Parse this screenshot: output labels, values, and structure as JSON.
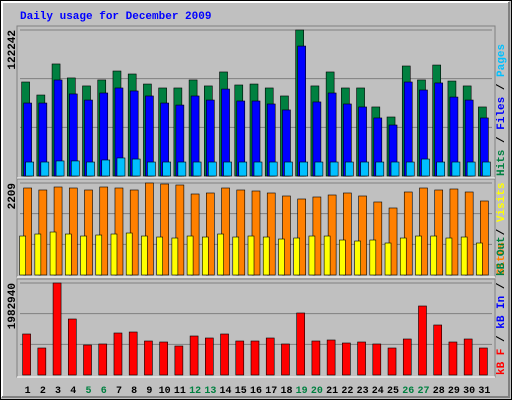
{
  "title": "Daily usage for December 2009",
  "chart_data": [
    {
      "type": "bar",
      "ylim": [
        0,
        122242
      ],
      "yticks": [
        122242
      ],
      "series": [
        {
          "name": "Hits",
          "color": "#008040",
          "values": [
            78700,
            67800,
            93800,
            82100,
            75400,
            80400,
            87900,
            85400,
            77000,
            73700,
            73700,
            80400,
            75400,
            87100,
            76200,
            77000,
            73700,
            67000,
            122242,
            75400,
            87100,
            73700,
            73700,
            57800,
            49400,
            92100,
            80400,
            92900,
            79500,
            75400,
            57800
          ]
        },
        {
          "name": "Files",
          "color": "#0000ff",
          "values": [
            61100,
            61100,
            80400,
            68700,
            63600,
            69500,
            73700,
            71200,
            67000,
            61100,
            59400,
            67000,
            63600,
            72800,
            62800,
            62800,
            60300,
            55300,
            108800,
            62000,
            69500,
            60300,
            57800,
            48600,
            42700,
            78700,
            72000,
            77900,
            66100,
            63600,
            48600
          ]
        },
        {
          "name": "Pages",
          "color": "#00c0ff",
          "values": [
            11700,
            11700,
            12600,
            12600,
            11700,
            13400,
            15100,
            14200,
            11700,
            11700,
            11700,
            11700,
            11700,
            11700,
            11700,
            11700,
            11700,
            11700,
            11700,
            11700,
            11700,
            11700,
            11700,
            11700,
            11700,
            11700,
            14200,
            11700,
            11700,
            11700,
            11700
          ]
        }
      ]
    },
    {
      "type": "bar",
      "ylim": [
        0,
        2209
      ],
      "yticks": [
        2209
      ],
      "series": [
        {
          "name": "Sites",
          "color": "#ff8000",
          "values": [
            2089,
            2041,
            2113,
            2089,
            2041,
            2113,
            2089,
            2041,
            2209,
            2185,
            2161,
            1945,
            1969,
            2089,
            2041,
            2017,
            1969,
            1897,
            1825,
            1873,
            1921,
            1969,
            1897,
            1753,
            1609,
            1993,
            2089,
            2041,
            2065,
            1993,
            1777
          ]
        },
        {
          "name": "Visits",
          "color": "#ffff00",
          "values": [
            936,
            984,
            1032,
            984,
            936,
            960,
            984,
            1008,
            936,
            912,
            888,
            936,
            912,
            984,
            912,
            936,
            912,
            864,
            888,
            936,
            936,
            840,
            816,
            840,
            768,
            888,
            936,
            936,
            888,
            912,
            768
          ]
        }
      ]
    },
    {
      "type": "bar",
      "ylim": [
        0,
        1982940
      ],
      "yticks": [
        1982940
      ],
      "categories": [
        "1",
        "2",
        "3",
        "4",
        "5",
        "6",
        "7",
        "8",
        "9",
        "10",
        "11",
        "12",
        "13",
        "14",
        "15",
        "16",
        "17",
        "18",
        "19",
        "20",
        "21",
        "22",
        "23",
        "24",
        "25",
        "26",
        "27",
        "28",
        "29",
        "30",
        "31"
      ],
      "category_colors": [
        "#000000",
        "#000000",
        "#000000",
        "#000000",
        "#008040",
        "#008040",
        "#000000",
        "#000000",
        "#000000",
        "#000000",
        "#000000",
        "#008040",
        "#008040",
        "#000000",
        "#000000",
        "#000000",
        "#000000",
        "#000000",
        "#008040",
        "#008040",
        "#000000",
        "#000000",
        "#000000",
        "#000000",
        "#000000",
        "#008040",
        "#008040",
        "#000000",
        "#000000",
        "#000000",
        "#000000"
      ],
      "series": [
        {
          "name": "kB F",
          "color": "#ff0000",
          "values": [
            883700,
            582000,
            1982940,
            1207000,
            646600,
            668200,
            905300,
            926800,
            732800,
            711300,
            625100,
            840600,
            797500,
            883700,
            732800,
            732800,
            797500,
            668200,
            1336300,
            732800,
            754400,
            689700,
            711300,
            668200,
            582000,
            775900,
            1487200,
            1077700,
            711300,
            775900,
            582000
          ]
        },
        {
          "name": "kB In",
          "color": "#0000ff"
        },
        {
          "name": "kB Out",
          "color": "#008040"
        }
      ]
    }
  ]
}
